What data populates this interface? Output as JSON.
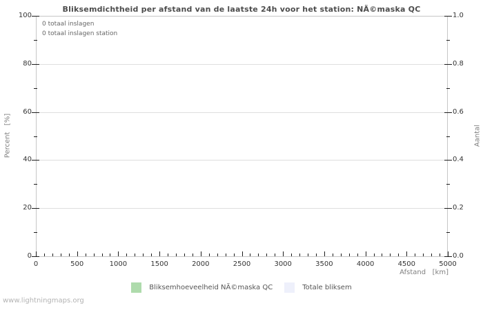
{
  "title": "Bliksemdichtheid per afstand van de laatste 24h voor het station: NÃ©maska QC",
  "watermark": "www.lightningmaps.org",
  "chart_data": {
    "type": "bar",
    "title": "Bliksemdichtheid per afstand van de laatste 24h voor het station: NÃ©maska QC",
    "annotations": [
      "0 totaal inslagen",
      "0 totaal inslagen station"
    ],
    "grid": "horizontal-major-lines",
    "legend_position": "bottom-center",
    "x_axis": {
      "label": "Afstand   [km]",
      "min": 0,
      "max": 5000,
      "major_tick_values": [
        0,
        500,
        1000,
        1500,
        2000,
        2500,
        3000,
        3500,
        4000,
        4500,
        5000
      ],
      "major_tick_labels": [
        "0",
        "500",
        "1000",
        "1500",
        "2000",
        "2500",
        "3000",
        "3500",
        "4000",
        "4500",
        "5000"
      ],
      "minor_tick_step": 100
    },
    "y_axis_left": {
      "label": "Percent   [%]",
      "min": 0,
      "max": 100,
      "major_tick_values": [
        0,
        20,
        40,
        60,
        80,
        100
      ],
      "major_tick_labels": [
        "0",
        "20",
        "40",
        "60",
        "80",
        "100"
      ],
      "minor_tick_step": 10
    },
    "y_axis_right": {
      "label": "Aantal",
      "min": 0.0,
      "max": 1.0,
      "major_tick_values": [
        0.0,
        0.2,
        0.4,
        0.6,
        0.8,
        1.0
      ],
      "major_tick_labels": [
        "0.0",
        "0.2",
        "0.4",
        "0.6",
        "0.8",
        "1.0"
      ],
      "minor_tick_step": 0.1
    },
    "series": [
      {
        "name": "Bliksemhoeveelheid NÃ©maska QC",
        "color": "#aedbac",
        "values": []
      },
      {
        "name": "Totale bliksem",
        "color": "#eef0fb",
        "values": []
      }
    ],
    "colors": {
      "gridline": "#dedede",
      "plot_border": "#c6c6c6",
      "tick": "#1a1a1a",
      "title_text": "#4c4c4c",
      "axis_label_text": "#808080",
      "tick_label_text": "#333333",
      "annotation_text": "#666666",
      "watermark_text": "#b3b3b3"
    }
  }
}
